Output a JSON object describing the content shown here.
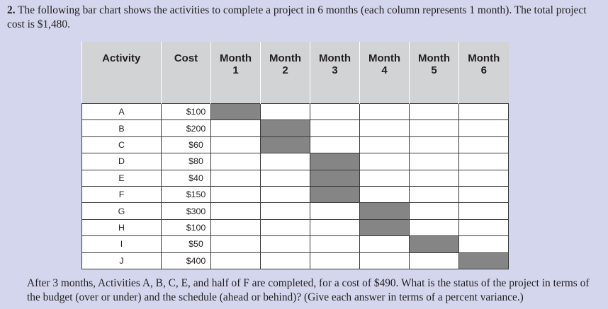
{
  "question": {
    "number": "2.",
    "text": "The following bar chart shows the activities to complete a project in 6 months (each column represents 1 month). The total project cost is $1,480."
  },
  "table": {
    "headers": {
      "activity": "Activity",
      "cost": "Cost",
      "month_word": "Month",
      "months": [
        "1",
        "2",
        "3",
        "4",
        "5",
        "6"
      ]
    },
    "rows": [
      {
        "activity": "A",
        "cost": "$100",
        "month": 1
      },
      {
        "activity": "B",
        "cost": "$200",
        "month": 2
      },
      {
        "activity": "C",
        "cost": "$60",
        "month": 2
      },
      {
        "activity": "D",
        "cost": "$80",
        "month": 3
      },
      {
        "activity": "E",
        "cost": "$40",
        "month": 3
      },
      {
        "activity": "F",
        "cost": "$150",
        "month": 3
      },
      {
        "activity": "G",
        "cost": "$300",
        "month": 4
      },
      {
        "activity": "H",
        "cost": "$100",
        "month": 4
      },
      {
        "activity": "I",
        "cost": "$50",
        "month": 5
      },
      {
        "activity": "J",
        "cost": "$400",
        "month": 6
      }
    ],
    "colors": {
      "header_bg": "#d2d3d5",
      "bar_fill": "#858585",
      "page_bg": "#d3d6ec"
    }
  },
  "footer": {
    "text": "After 3 months, Activities A, B, C, E, and half of F are completed, for a cost of $490. What is the status of the project in terms of the budget (over or under) and the schedule (ahead or behind)? (Give each answer in terms of a percent variance.)"
  }
}
